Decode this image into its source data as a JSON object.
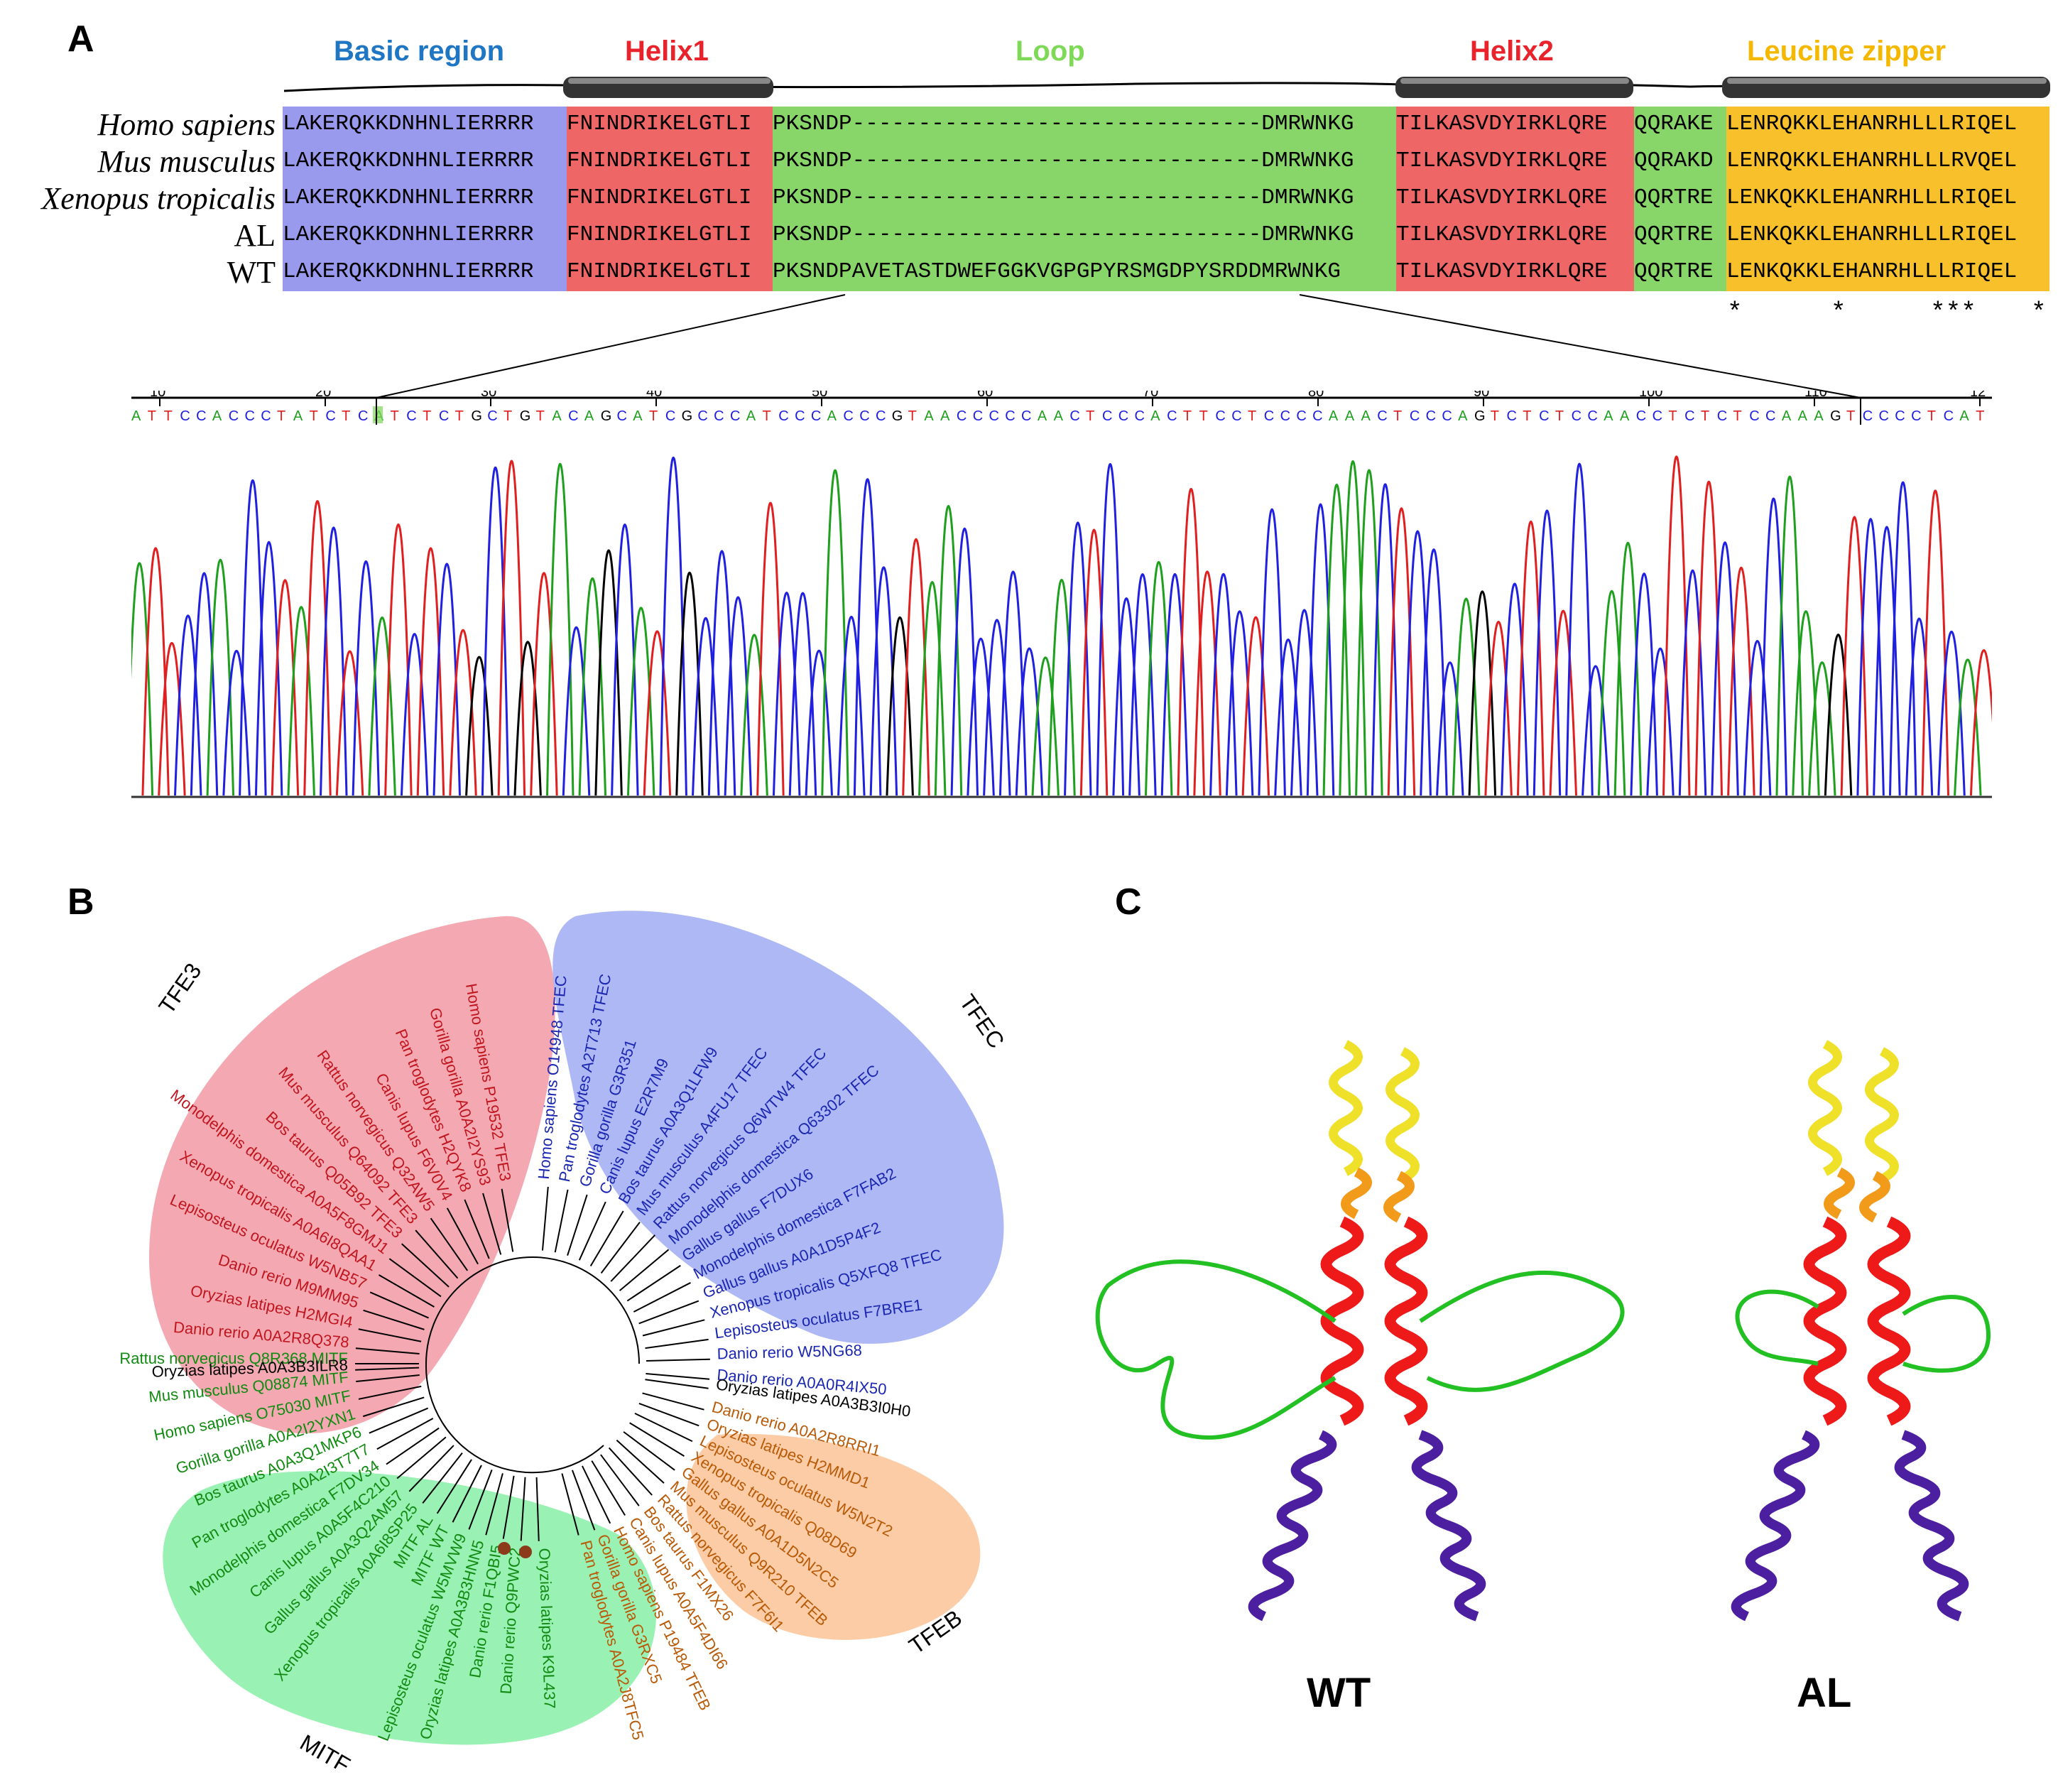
{
  "panels": {
    "a": "A",
    "b": "B",
    "c": "C"
  },
  "panelA": {
    "regions": [
      {
        "name": "Basic region",
        "color": "#1f77c4"
      },
      {
        "name": "Helix1",
        "color": "#e8232b"
      },
      {
        "name": "Loop",
        "color": "#7ed957"
      },
      {
        "name": "Helix2",
        "color": "#e8232b"
      },
      {
        "name": "Leucine zipper",
        "color": "#f5b800"
      }
    ],
    "species": [
      {
        "name": "Homo sapiens",
        "italic": true
      },
      {
        "name": "Mus musculus",
        "italic": true
      },
      {
        "name": "Xenopus tropicalis",
        "italic": true
      },
      {
        "name": "AL",
        "italic": false
      },
      {
        "name": "WT",
        "italic": false
      }
    ],
    "sequences": [
      {
        "basic": "LAKERQKKDNHNLIERRRR",
        "helix1": "FNINDRIKELGTLI",
        "loop": "PKSNDP-------------------------------DMRWNKG",
        "helix2": "TILKASVDYIRKLQRE",
        "link": "QQRAKE",
        "zipper": "LENRQKKLEHANRHLLLRIQEL"
      },
      {
        "basic": "LAKERQKKDNHNLIERRRR",
        "helix1": "FNINDRIKELGTLI",
        "loop": "PKSNDP-------------------------------DMRWNKG",
        "helix2": "TILKASVDYIRKLQRE",
        "link": "QQRAKD",
        "zipper": "LENRQKKLEHANRHLLLRVQEL"
      },
      {
        "basic": "LAKERQKKDNHNLIERRRR",
        "helix1": "FNINDRIKELGTLI",
        "loop": "PKSNDP-------------------------------DMRWNKG",
        "helix2": "TILKASVDYIRKLQRE",
        "link": "QQRTRE",
        "zipper": "LENKQKKLEHANRHLLLRIQEL"
      },
      {
        "basic": "LAKERQKKDNHNLIERRRR",
        "helix1": "FNINDRIKELGTLI",
        "loop": "PKSNDP-------------------------------DMRWNKG",
        "helix2": "TILKASVDYIRKLQRE",
        "link": "QQRTRE",
        "zipper": "LENKQKKLEHANRHLLLRIQEL"
      },
      {
        "basic": "LAKERQKKDNHNLIERRRR",
        "helix1": "FNINDRIKELGTLI",
        "loop": "PKSNDPAVETASTDWEFGGKVGPGPYRSMGDPYSRDDMRWNKG",
        "helix2": "TILKASVDYIRKLQRE",
        "link": "QQRTRE",
        "zipper": "LENKQKKLEHANRHLLLRIQEL"
      }
    ],
    "conservation_marks": [
      "*",
      "*",
      "***",
      "*"
    ],
    "bg_colors": {
      "basic": "#9999ee",
      "helix1": "#ee6666",
      "loop": "#88d66a",
      "helix2": "#ee6666",
      "link": "#88d66a",
      "zipper": "#f8c02a"
    },
    "chromatogram": {
      "ticks": [
        "10",
        "20",
        "30",
        "40",
        "50",
        "60",
        "70",
        "80",
        "90",
        "100",
        "110",
        "12"
      ],
      "bases": "ATTCCACCCTATCTCATCTCTGCTGTACAGCATCGCCCATCCCACCCGTAACCCCCAACTCCCACTTCCTCCCCAAACTCCCAGTCTCTCCAACCTCTCTCCAAAGTCCCCTCAT",
      "base_colors": {
        "A": "#1ea01e",
        "C": "#2020e0",
        "G": "#000000",
        "T": "#e02020"
      }
    }
  },
  "panelB": {
    "clades": [
      {
        "name": "TFE3",
        "color": "#f3a4ae",
        "text": "#c0161f"
      },
      {
        "name": "TFEC",
        "color": "#aab4f4",
        "text": "#1b27b0"
      },
      {
        "name": "TFEB",
        "color": "#fbc9a0",
        "text": "#b85a08"
      },
      {
        "name": "MITF",
        "color": "#95f0b0",
        "text": "#118a11"
      }
    ],
    "tfe3_leaves": [
      "Homo sapiens P19532 TFE3",
      "Gorilla gorilla A0A2I2YS93",
      "Pan troglodytes H2QYK8",
      "Canis lupus F6V0V4",
      "Rattus norvegicus Q32AW5",
      "Mus musculus Q64092 TFE3",
      "Bos taurus Q05B92 TFE3",
      "Monodelphis domestica A0A5F8GMJ1",
      "Xenopus tropicalis A0A6I8QAA1",
      "Lepisosteus oculatus W5NB57",
      "Danio rerio M9MM95",
      "Oryzias latipes H2MGI4",
      "Danio rerio A0A2R8Q378"
    ],
    "tfec_leaves": [
      "Homo sapiens O14948 TFEC",
      "Pan troglodytes A2T713 TFEC",
      "Gorilla gorilla G3R351",
      "Canis lupus E2R7M9",
      "Bos taurus A0A3Q1LFW9",
      "Mus musculus A4FU17 TFEC",
      "Rattus norvegicus Q6WTW4 TFEC",
      "Monodelphis domestica Q63302 TFEC",
      "Gallus gallus F7DUX6",
      "Monodelphis domestica F7FAB2",
      "Gallus gallus A0A1D5P4F2",
      "Xenopus tropicalis Q5XFQ8 TFEC",
      "Lepisosteus oculatus F7BRE1",
      "Danio rerio W5NG68",
      "Danio rerio A0A0R4IX50"
    ],
    "tfeb_leaves": [
      "Danio rerio A0A2R8RRI1",
      "Oryzias latipes H2MMD1",
      "Lepisosteus oculatus W5N2T2",
      "Xenopus tropicalis Q08D69",
      "Gallus gallus A0A1D5N2C5",
      "Mus musculus Q9R210 TFEB",
      "Rattus norvegicus F7F6I1",
      "Bos taurus F1MX26",
      "Canis lupus A0A5F4DI66",
      "Homo sapiens P19484 TFEB",
      "Gorilla gorilla G3RXC5",
      "Pan troglodytes A0A2J8TFC5"
    ],
    "mitf_leaves": [
      "Rattus norvegicus Q8R368 MITF",
      "Mus musculus Q08874 MITF",
      "Homo sapiens O75030 MITF",
      "Gorilla gorilla A0A2I2YXN1",
      "Bos taurus A0A3Q1MKP6",
      "Pan troglodytes A0A2I3T7T7",
      "Monodelphis domestica F7DV34",
      "Canis lupus A0A5F4C210",
      "Gallus gallus A0A3Q2AM57",
      "Xenopus tropicalis A0A6I8SP25",
      "MITF AL",
      "MITF WT",
      "Lepisosteus oculatus W5MVW9",
      "Oryzias latipes A0A3B3HNN5",
      "Danio rerio F1QBI5",
      "Danio rerio Q9PWC2",
      "Oryzias latipes K9L437"
    ],
    "outgroup_leaves": [
      "Oryzias latipes A0A3B3ILR8",
      "Oryzias latipes A0A3B3I0H0"
    ]
  },
  "panelC": {
    "labels": [
      "WT",
      "AL"
    ]
  }
}
